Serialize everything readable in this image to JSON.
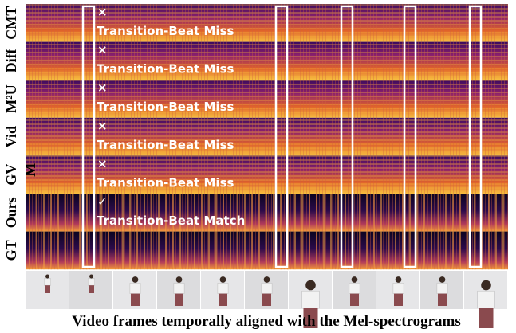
{
  "methods": [
    "CMT",
    "Diff",
    "M²U",
    "Vid",
    "GV",
    "Ours",
    "GT"
  ],
  "label_fragment": "M",
  "annotations": [
    {
      "mark": "×",
      "text": "Transition-Beat Miss"
    },
    {
      "mark": "×",
      "text": "Transition-Beat Miss"
    },
    {
      "mark": "×",
      "text": "Transition-Beat Miss"
    },
    {
      "mark": "×",
      "text": "Transition-Beat Miss"
    },
    {
      "mark": "×",
      "text": "Transition-Beat Miss"
    },
    {
      "mark": "✓",
      "text": "Transition-Beat Match"
    }
  ],
  "caption": "Video frames temporally aligned with the Mel-spectrograms"
}
